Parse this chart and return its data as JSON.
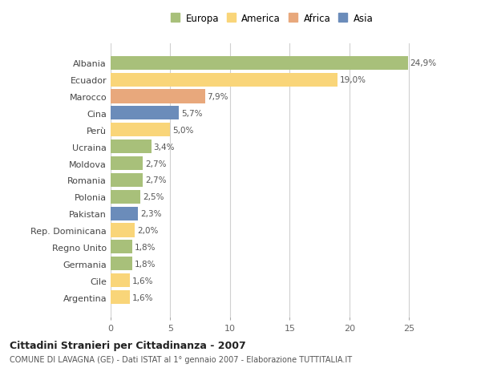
{
  "categories": [
    "Albania",
    "Ecuador",
    "Marocco",
    "Cina",
    "Perù",
    "Ucraina",
    "Moldova",
    "Romania",
    "Polonia",
    "Pakistan",
    "Rep. Dominicana",
    "Regno Unito",
    "Germania",
    "Cile",
    "Argentina"
  ],
  "values": [
    24.9,
    19.0,
    7.9,
    5.7,
    5.0,
    3.4,
    2.7,
    2.7,
    2.5,
    2.3,
    2.0,
    1.8,
    1.8,
    1.6,
    1.6
  ],
  "bar_colors": [
    "#a8c07a",
    "#f9d579",
    "#e8a87c",
    "#6b8cba",
    "#f9d579",
    "#a8c07a",
    "#a8c07a",
    "#a8c07a",
    "#a8c07a",
    "#6b8cba",
    "#f9d579",
    "#a8c07a",
    "#a8c07a",
    "#f9d579",
    "#f9d579"
  ],
  "labels": [
    "24,9%",
    "19,0%",
    "7,9%",
    "5,7%",
    "5,0%",
    "3,4%",
    "2,7%",
    "2,7%",
    "2,5%",
    "2,3%",
    "2,0%",
    "1,8%",
    "1,8%",
    "1,6%",
    "1,6%"
  ],
  "legend_labels": [
    "Europa",
    "America",
    "Africa",
    "Asia"
  ],
  "legend_colors": [
    "#a8c07a",
    "#f9d579",
    "#e8a87c",
    "#6b8cba"
  ],
  "title": "Cittadini Stranieri per Cittadinanza - 2007",
  "subtitle": "COMUNE DI LAVAGNA (GE) - Dati ISTAT al 1° gennaio 2007 - Elaborazione TUTTITALIA.IT",
  "xlim": [
    0,
    27
  ],
  "background_color": "#ffffff",
  "grid_color": "#d0d0d0",
  "bar_height": 0.82
}
